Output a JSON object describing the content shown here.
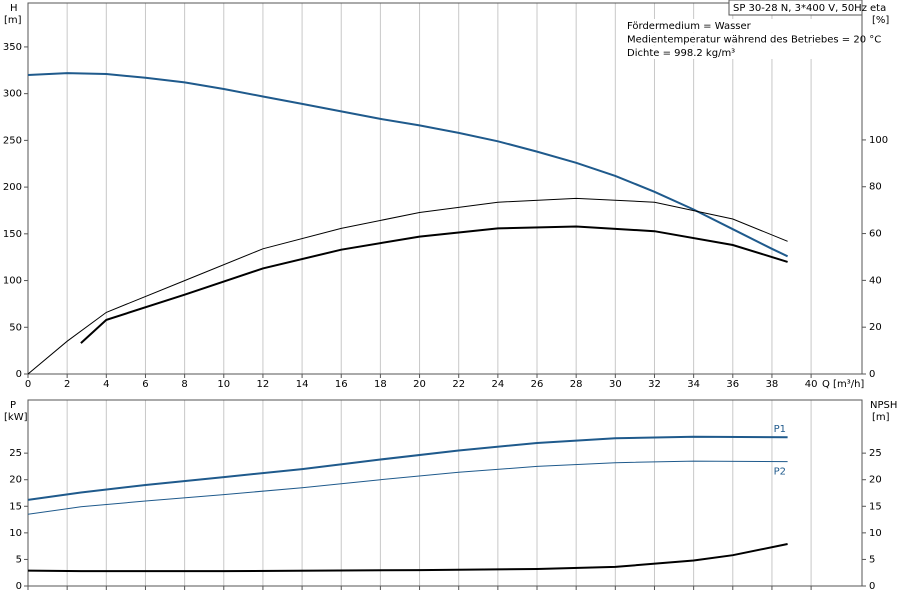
{
  "chart_data": [
    {
      "type": "line",
      "title": "SP 30-28 N, 3*400 V, 50Hz",
      "notes": [
        "Fördermedium = Wasser",
        "Medientemperatur während des Betriebes = 20 °C",
        "Dichte = 998.2 kg/m³"
      ],
      "x_label": "Q [m³/h]",
      "y_label": "H",
      "y_unit": "[m]",
      "y2_label": "eta",
      "y2_unit": "[%]",
      "xlim": [
        0,
        42.6
      ],
      "xticks": [
        0,
        2,
        4,
        6,
        8,
        10,
        12,
        14,
        16,
        18,
        20,
        22,
        24,
        26,
        28,
        30,
        32,
        34,
        36,
        38,
        40
      ],
      "ylim": [
        0,
        397
      ],
      "yticks": [
        0,
        50,
        100,
        150,
        200,
        250,
        300,
        350
      ],
      "y2lim": [
        0,
        158.5
      ],
      "y2ticks": [
        0,
        20,
        40,
        60,
        80,
        100
      ],
      "grid": true,
      "series": [
        {
          "color": "#1f5a8c",
          "line_width": 2,
          "axis": "y",
          "x": [
            0,
            2,
            4,
            6,
            8,
            10,
            12,
            14,
            16,
            18,
            20,
            22,
            24,
            26,
            28,
            30,
            32,
            34,
            36,
            38,
            38.8
          ],
          "values": [
            320,
            322,
            321,
            317,
            312,
            305,
            297,
            289,
            281,
            273,
            266,
            258,
            249,
            238,
            226,
            212,
            195,
            176,
            155,
            134,
            126
          ]
        },
        {
          "color": "#000000",
          "line_width": 1,
          "axis": "y2",
          "x": [
            0,
            2,
            4,
            8,
            12,
            16,
            20,
            24,
            28,
            32,
            36,
            38.8
          ],
          "values": [
            0,
            14,
            26.3,
            39.9,
            53.5,
            62.2,
            69.0,
            73.4,
            75.0,
            73.4,
            66.2,
            56.7
          ]
        },
        {
          "color": "#000000",
          "line_width": 2,
          "axis": "y2",
          "x": [
            2.7,
            4,
            8,
            12,
            16,
            20,
            24,
            28,
            32,
            36,
            38.8
          ],
          "values": [
            13.2,
            23.1,
            33.9,
            45.1,
            53.1,
            58.7,
            62.2,
            63.0,
            61.0,
            55.1,
            47.9
          ]
        }
      ]
    },
    {
      "type": "line",
      "y_label": "P",
      "y_unit": "[kW]",
      "y2_label": "NPSH",
      "y2_unit": "[m]",
      "xlim": [
        0,
        42.6
      ],
      "xticks": [
        0,
        2,
        4,
        6,
        8,
        10,
        12,
        14,
        16,
        18,
        20,
        22,
        24,
        26,
        28,
        30,
        32,
        34,
        36,
        38,
        40
      ],
      "ylim": [
        0,
        35
      ],
      "yticks": [
        0,
        5,
        10,
        15,
        20,
        25
      ],
      "y2lim": [
        0,
        35
      ],
      "y2ticks": [
        0,
        5,
        10,
        15,
        20,
        25
      ],
      "grid": true,
      "series": [
        {
          "name": "P1",
          "color": "#1f5a8c",
          "line_width": 2,
          "axis": "y",
          "x": [
            0,
            2.7,
            6,
            10,
            14,
            18,
            22,
            26,
            30,
            34,
            38.8
          ],
          "values": [
            16.2,
            17.6,
            19.0,
            20.5,
            22.0,
            23.8,
            25.5,
            26.9,
            27.8,
            28.1,
            28.0
          ]
        },
        {
          "name": "P2",
          "color": "#1f5a8c",
          "line_width": 1,
          "axis": "y",
          "x": [
            0,
            2.7,
            6,
            10,
            14,
            18,
            22,
            26,
            30,
            34,
            38.8
          ],
          "values": [
            13.5,
            14.9,
            16.0,
            17.2,
            18.5,
            20.0,
            21.4,
            22.5,
            23.2,
            23.5,
            23.4
          ]
        },
        {
          "color": "#000000",
          "line_width": 2,
          "axis": "y2",
          "x": [
            0,
            2.7,
            10,
            20,
            26,
            30,
            34,
            36,
            38.8
          ],
          "values": [
            2.9,
            2.8,
            2.8,
            3.0,
            3.2,
            3.6,
            4.8,
            5.8,
            7.9
          ]
        }
      ]
    }
  ]
}
